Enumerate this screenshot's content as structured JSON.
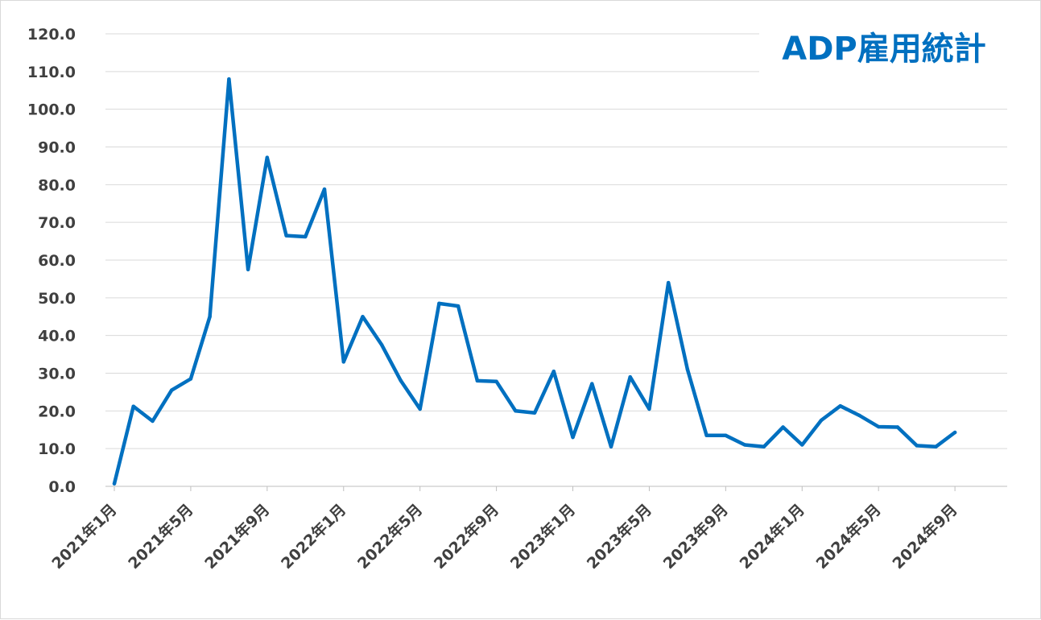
{
  "chart_data": {
    "type": "line",
    "title": "ADP雇用統計",
    "xlabel": "",
    "ylabel": "",
    "ylim": [
      0,
      120
    ],
    "yticks": [
      "0.0",
      "10.0",
      "20.0",
      "30.0",
      "40.0",
      "50.0",
      "60.0",
      "70.0",
      "80.0",
      "90.0",
      "100.0",
      "110.0",
      "120.0"
    ],
    "x_start": "2021年1月",
    "xticks": [
      {
        "label": "2021年1月",
        "index": 0
      },
      {
        "label": "2021年5月",
        "index": 4
      },
      {
        "label": "2021年9月",
        "index": 8
      },
      {
        "label": "2022年1月",
        "index": 12
      },
      {
        "label": "2022年5月",
        "index": 16
      },
      {
        "label": "2022年9月",
        "index": 20
      },
      {
        "label": "2023年1月",
        "index": 24
      },
      {
        "label": "2023年5月",
        "index": 28
      },
      {
        "label": "2023年9月",
        "index": 32
      },
      {
        "label": "2024年1月",
        "index": 36
      },
      {
        "label": "2024年5月",
        "index": 40
      },
      {
        "label": "2024年9月",
        "index": 44
      }
    ],
    "grid": true,
    "legend": "none",
    "series": [
      {
        "color": "#0070c0",
        "values": [
          0.7,
          21.2,
          17.3,
          25.5,
          28.5,
          45.0,
          108.0,
          57.5,
          87.2,
          66.5,
          66.2,
          78.8,
          33.0,
          45.0,
          37.5,
          28.0,
          20.5,
          48.5,
          47.8,
          28.0,
          27.8,
          20.0,
          19.5,
          30.5,
          13.0,
          27.2,
          10.5,
          29.0,
          20.5,
          54.0,
          31.0,
          13.5,
          13.5,
          11.0,
          10.5,
          15.7,
          11.0,
          17.5,
          21.3,
          18.8,
          15.8,
          15.7,
          10.8,
          10.5,
          14.3
        ]
      }
    ]
  }
}
